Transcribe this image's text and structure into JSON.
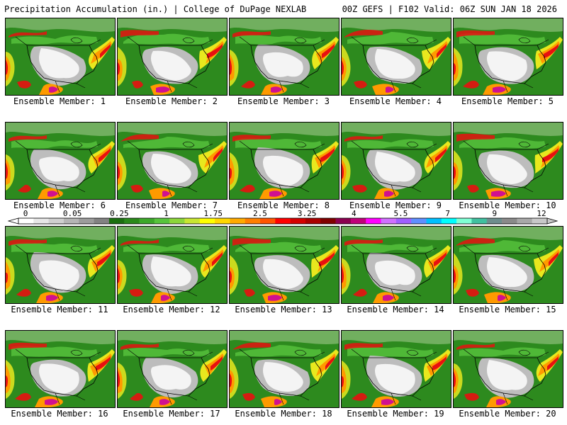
{
  "header": {
    "left_title": "Precipitation Accumulation (in.) | College of DuPage NEXLAB",
    "right_title": "00Z GEFS | F102 Valid: 06Z SUN JAN 18 2026"
  },
  "member_label_prefix": "Ensemble Member: ",
  "members": [
    1,
    2,
    3,
    4,
    5,
    6,
    7,
    8,
    9,
    10,
    11,
    12,
    13,
    14,
    15,
    16,
    17,
    18,
    19,
    20
  ],
  "colorbar": {
    "tick_labels": [
      "0",
      "0.05",
      "0.25",
      "1",
      "1.75",
      "2.5",
      "3.25",
      "4",
      "5.5",
      "7",
      "9",
      "12"
    ],
    "colors": [
      "#ffffff",
      "#e6e6e6",
      "#cfcfcf",
      "#b5b5b5",
      "#9c9c9c",
      "#828282",
      "#1b6f10",
      "#2a8a1a",
      "#3ca82a",
      "#57c43c",
      "#8cd63a",
      "#c8e632",
      "#ffff00",
      "#ffd700",
      "#ffaa00",
      "#ff7f00",
      "#ff5500",
      "#ff0000",
      "#d40000",
      "#aa0000",
      "#800000",
      "#8b0050",
      "#c0007a",
      "#ff00ff",
      "#d070ff",
      "#9f5fff",
      "#5f8fff",
      "#00bfff",
      "#00ffff",
      "#7fffd4",
      "#40c0a0",
      "#6e8e8e",
      "#8a8a8a",
      "#a8a8a8",
      "#c8c8c8"
    ]
  },
  "map_colors": {
    "base_green": "#2d8a1e",
    "light_green": "#4fb837",
    "dry_white": "#f4f4f4",
    "dry_grey": "#bdbdbd",
    "yellow": "#e8e81e",
    "orange": "#ff9a00",
    "red": "#e81010",
    "magenta": "#d01090",
    "outline": "#000000"
  }
}
